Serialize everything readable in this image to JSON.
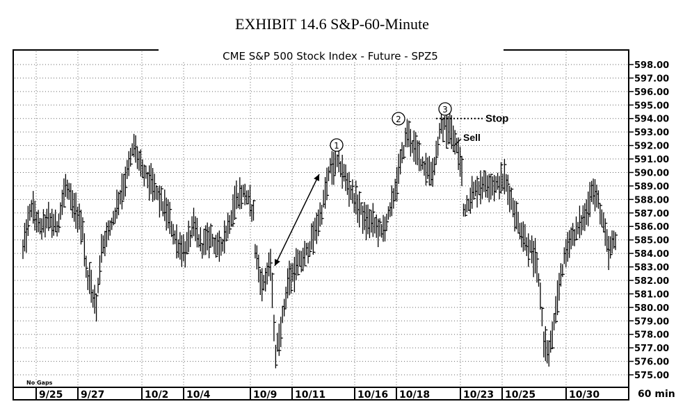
{
  "exhibit_title": "EXHIBIT 14.6 S&P-60-Minute",
  "chart_data": {
    "type": "ohlc",
    "title": "CME S&P 500 Stock Index - Future - SPZ5",
    "footnote": "No Gaps",
    "interval_label": "60 min",
    "ylim": [
      574.5,
      598.5
    ],
    "y_ticks": [
      "598.00",
      "597.00",
      "596.00",
      "595.00",
      "594.00",
      "593.00",
      "592.00",
      "591.00",
      "590.00",
      "589.00",
      "588.00",
      "587.00",
      "586.00",
      "585.00",
      "584.00",
      "583.00",
      "582.00",
      "581.00",
      "580.00",
      "579.00",
      "578.00",
      "577.00",
      "576.00",
      "575.00"
    ],
    "x_labels": [
      "9/25",
      "9/27",
      "10/2",
      "10/4",
      "10/9",
      "10/11",
      "10/16",
      "10/18",
      "10/23",
      "10/25",
      "10/30"
    ],
    "grid": true,
    "annotations": {
      "wave_labels": [
        "1",
        "2",
        "3"
      ],
      "stop_label": "Stop",
      "stop_level": 594.0,
      "sell_label": "Sell"
    },
    "anchors": [
      [
        0,
        584.2
      ],
      [
        5,
        587.5
      ],
      [
        10,
        585.8
      ],
      [
        15,
        586.5
      ],
      [
        20,
        586.0
      ],
      [
        25,
        589.0
      ],
      [
        30,
        587.2
      ],
      [
        35,
        586.0
      ],
      [
        37,
        582.8
      ],
      [
        40,
        581.5
      ],
      [
        43,
        580.0
      ],
      [
        46,
        584.5
      ],
      [
        50,
        585.5
      ],
      [
        55,
        587.5
      ],
      [
        60,
        589.5
      ],
      [
        65,
        592.0
      ],
      [
        70,
        590.0
      ],
      [
        75,
        589.2
      ],
      [
        80,
        588.0
      ],
      [
        85,
        586.8
      ],
      [
        90,
        584.8
      ],
      [
        95,
        584.2
      ],
      [
        100,
        586.0
      ],
      [
        105,
        584.5
      ],
      [
        110,
        585.2
      ],
      [
        115,
        584.2
      ],
      [
        120,
        586.0
      ],
      [
        125,
        588.2
      ],
      [
        130,
        588.5
      ],
      [
        135,
        587.0
      ],
      [
        136,
        584.3
      ],
      [
        140,
        581.5
      ],
      [
        145,
        583.2
      ],
      [
        148,
        576.5
      ],
      [
        152,
        579.2
      ],
      [
        155,
        581.8
      ],
      [
        160,
        583.0
      ],
      [
        165,
        583.8
      ],
      [
        170,
        585.2
      ],
      [
        175,
        587.2
      ],
      [
        180,
        590.3
      ],
      [
        185,
        590.8
      ],
      [
        190,
        589.2
      ],
      [
        195,
        587.8
      ],
      [
        200,
        586.5
      ],
      [
        205,
        586.2
      ],
      [
        210,
        585.5
      ],
      [
        215,
        587.0
      ],
      [
        220,
        590.0
      ],
      [
        225,
        593.0
      ],
      [
        230,
        591.5
      ],
      [
        235,
        590.5
      ],
      [
        240,
        590.0
      ],
      [
        245,
        593.5
      ],
      [
        250,
        593.2
      ],
      [
        255,
        591.5
      ],
      [
        257,
        590.0
      ],
      [
        258,
        587.2
      ],
      [
        262,
        588.2
      ],
      [
        267,
        589.0
      ],
      [
        272,
        589.2
      ],
      [
        277,
        589.0
      ],
      [
        282,
        589.5
      ],
      [
        286,
        588.0
      ],
      [
        290,
        586.2
      ],
      [
        295,
        584.8
      ],
      [
        300,
        583.5
      ],
      [
        303,
        581.0
      ],
      [
        305,
        577.5
      ],
      [
        308,
        576.5
      ],
      [
        312,
        579.5
      ],
      [
        315,
        582.5
      ],
      [
        320,
        585.0
      ],
      [
        325,
        585.8
      ],
      [
        330,
        587.0
      ],
      [
        333,
        588.8
      ],
      [
        337,
        587.8
      ],
      [
        340,
        586.0
      ],
      [
        343,
        584.0
      ],
      [
        347,
        585.2
      ]
    ]
  }
}
